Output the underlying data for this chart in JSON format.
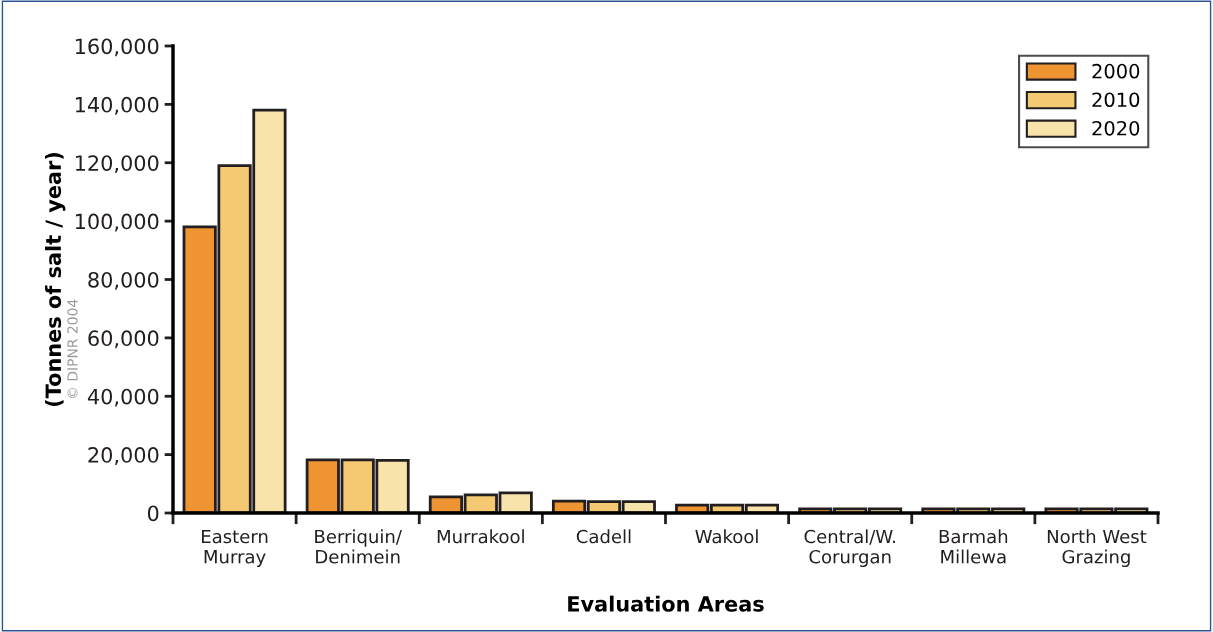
{
  "chart_data": {
    "type": "bar",
    "xlabel": "Evaluation Areas",
    "ylabel": "(Tonnes of salt / year)",
    "categories": [
      "Eastern\nMurray",
      "Berriquin/\nDenimein",
      "Murrakool",
      "Cadell",
      "Wakool",
      "Central/W.\nCorurgan",
      "Barmah\nMillewa",
      "North West\nGrazing"
    ],
    "series": [
      {
        "name": "2000",
        "color": "#ee9433",
        "values": [
          98000,
          18200,
          5500,
          4100,
          2700,
          1400,
          1400,
          1400
        ]
      },
      {
        "name": "2010",
        "color": "#f5c872",
        "values": [
          119000,
          18200,
          6200,
          3900,
          2700,
          1400,
          1400,
          1400
        ]
      },
      {
        "name": "2020",
        "color": "#f8e4aa",
        "values": [
          138000,
          18000,
          6900,
          3900,
          2700,
          1400,
          1400,
          1400
        ]
      }
    ],
    "ylim": [
      0,
      160000
    ],
    "yticks": [
      {
        "value": 0,
        "label": "0"
      },
      {
        "value": 20000,
        "label": "20,000"
      },
      {
        "value": 40000,
        "label": "40,000"
      },
      {
        "value": 60000,
        "label": "60,000"
      },
      {
        "value": 80000,
        "label": "80,000"
      },
      {
        "value": 100000,
        "label": "100,000"
      },
      {
        "value": 120000,
        "label": "120,000"
      },
      {
        "value": 140000,
        "label": "140,000"
      },
      {
        "value": 160000,
        "label": "160,000"
      }
    ],
    "annotations": [
      "© DIPNR 2004"
    ],
    "grid": false,
    "legend": "top right"
  }
}
